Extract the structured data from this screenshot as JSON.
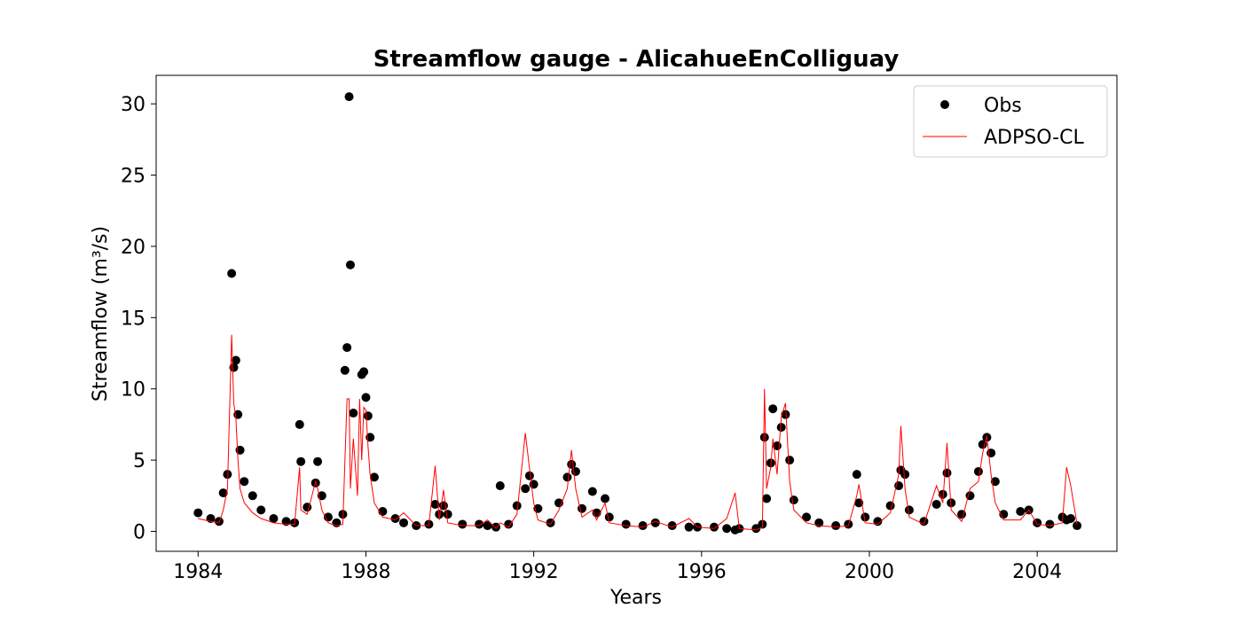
{
  "chart_data": {
    "type": "line",
    "title": "Streamflow gauge - AlicahueEnColliguay",
    "x_label": "Years",
    "y_label": "Streamflow (m³/s)",
    "x": [
      1984.0,
      1984.3,
      1984.5,
      1984.6,
      1984.7,
      1984.8,
      1984.85,
      1984.9,
      1984.95,
      1985.0,
      1985.1,
      1985.3,
      1985.5,
      1985.8,
      1986.1,
      1986.3,
      1986.42,
      1986.45,
      1986.6,
      1986.8,
      1986.85,
      1986.95,
      1987.1,
      1987.3,
      1987.45,
      1987.5,
      1987.55,
      1987.6,
      1987.63,
      1987.7,
      1987.8,
      1987.85,
      1987.9,
      1987.95,
      1988.0,
      1988.05,
      1988.1,
      1988.2,
      1988.4,
      1988.7,
      1988.9,
      1989.2,
      1989.5,
      1989.65,
      1989.75,
      1989.85,
      1989.95,
      1990.3,
      1990.7,
      1990.9,
      1991.1,
      1991.2,
      1991.4,
      1991.6,
      1991.8,
      1991.9,
      1992.0,
      1992.1,
      1992.4,
      1992.6,
      1992.8,
      1992.9,
      1993.0,
      1993.15,
      1993.4,
      1993.5,
      1993.7,
      1993.8,
      1994.2,
      1994.6,
      1994.9,
      1995.3,
      1995.7,
      1995.9,
      1996.3,
      1996.6,
      1996.8,
      1996.9,
      1997.3,
      1997.45,
      1997.5,
      1997.55,
      1997.65,
      1997.7,
      1997.8,
      1997.9,
      1998.0,
      1998.1,
      1998.2,
      1998.5,
      1998.8,
      1999.2,
      1999.5,
      1999.7,
      1999.75,
      1999.9,
      2000.2,
      2000.5,
      2000.7,
      2000.75,
      2000.85,
      2000.95,
      2001.3,
      2001.6,
      2001.75,
      2001.85,
      2001.95,
      2002.2,
      2002.4,
      2002.6,
      2002.7,
      2002.8,
      2002.9,
      2003.0,
      2003.2,
      2003.6,
      2003.8,
      2004.0,
      2004.3,
      2004.6,
      2004.7,
      2004.8,
      2004.95
    ],
    "series": [
      {
        "name": "Obs",
        "color": "#000000",
        "style": "markers",
        "values": [
          1.3,
          0.9,
          0.7,
          2.7,
          4.0,
          18.1,
          11.5,
          12.0,
          8.2,
          5.7,
          3.5,
          2.5,
          1.5,
          0.9,
          0.7,
          0.6,
          7.5,
          4.9,
          1.7,
          3.4,
          4.9,
          2.5,
          1.0,
          0.6,
          1.2,
          11.3,
          12.9,
          30.5,
          18.7,
          8.3,
          null,
          null,
          11.0,
          11.2,
          9.4,
          8.1,
          6.6,
          3.8,
          1.4,
          0.9,
          0.6,
          0.4,
          0.5,
          1.9,
          1.2,
          1.8,
          1.2,
          0.5,
          0.5,
          0.4,
          0.3,
          3.2,
          0.5,
          1.8,
          3.0,
          3.9,
          3.3,
          1.6,
          0.6,
          2.0,
          3.8,
          4.7,
          4.2,
          1.6,
          2.8,
          1.3,
          2.3,
          1.0,
          0.5,
          0.4,
          0.6,
          0.4,
          0.3,
          0.3,
          0.3,
          0.2,
          0.1,
          0.2,
          0.2,
          0.5,
          6.6,
          2.3,
          4.8,
          8.6,
          6.0,
          7.3,
          8.2,
          5.0,
          2.2,
          1.0,
          0.6,
          0.4,
          0.5,
          4.0,
          2.0,
          1.0,
          0.7,
          1.8,
          3.2,
          4.3,
          4.0,
          1.5,
          0.7,
          1.9,
          2.6,
          4.1,
          2.0,
          1.2,
          2.5,
          4.2,
          6.1,
          6.6,
          5.5,
          3.5,
          1.2,
          1.4,
          1.5,
          0.6,
          0.5,
          1.0,
          0.8,
          0.9,
          0.4
        ]
      },
      {
        "name": "ADPSO-CL",
        "color": "#ff0000",
        "style": "line",
        "values": [
          0.9,
          0.7,
          0.6,
          1.5,
          3.0,
          13.8,
          9.0,
          8.0,
          5.0,
          3.0,
          2.0,
          1.3,
          0.9,
          0.6,
          0.5,
          0.5,
          4.5,
          1.5,
          1.2,
          3.5,
          3.0,
          1.5,
          0.6,
          0.4,
          0.5,
          5.0,
          9.3,
          9.3,
          3.0,
          6.5,
          2.5,
          9.3,
          5.0,
          8.7,
          8.5,
          6.0,
          4.0,
          2.0,
          1.0,
          0.8,
          1.3,
          0.4,
          0.4,
          4.6,
          0.8,
          2.9,
          0.6,
          0.4,
          0.4,
          0.8,
          0.2,
          0.6,
          0.3,
          1.2,
          6.9,
          4.4,
          2.0,
          0.8,
          0.5,
          1.5,
          3.0,
          5.7,
          3.0,
          1.0,
          1.5,
          0.8,
          2.0,
          0.6,
          0.4,
          0.3,
          0.7,
          0.3,
          0.9,
          0.3,
          0.2,
          0.9,
          2.7,
          0.2,
          0.1,
          0.3,
          10.0,
          3.0,
          4.5,
          6.5,
          4.0,
          8.0,
          9.0,
          3.5,
          1.5,
          0.6,
          0.4,
          0.3,
          0.4,
          2.5,
          3.3,
          0.6,
          0.5,
          1.3,
          4.0,
          7.4,
          3.0,
          1.0,
          0.5,
          3.2,
          2.0,
          6.2,
          1.5,
          0.7,
          3.0,
          3.5,
          5.5,
          6.7,
          4.0,
          2.0,
          0.8,
          0.8,
          1.5,
          0.5,
          0.4,
          0.6,
          4.5,
          3.2,
          0.5
        ]
      }
    ],
    "xlim": [
      1983,
      2005.9
    ],
    "xticks": [
      1984,
      1988,
      1992,
      1996,
      2000,
      2004
    ],
    "ylim": [
      -1.4,
      32
    ],
    "yticks": [
      0,
      5,
      10,
      15,
      20,
      25,
      30
    ],
    "grid": false,
    "legend": "upper right"
  }
}
